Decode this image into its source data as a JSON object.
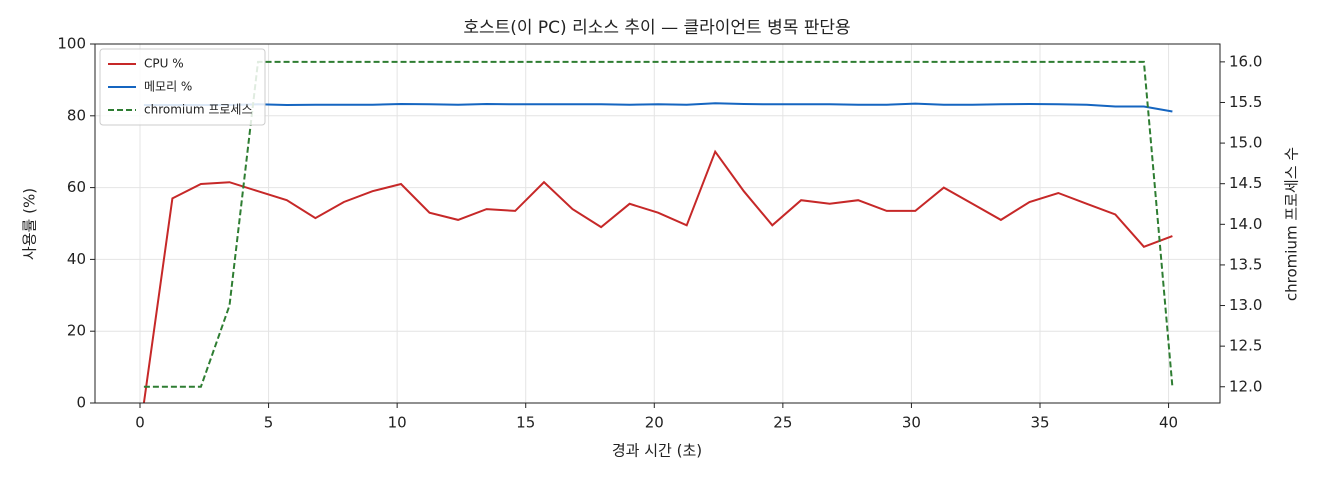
{
  "chart_data": {
    "type": "line",
    "title": "호스트(이 PC) 리소스 추이 — 클라이언트 병목 판단용",
    "xlabel": "경과 시간 (초)",
    "ylabel": "사용률 (%)",
    "y2label": "chromium 프로세스 수",
    "x": [
      0.15,
      1.26,
      2.37,
      3.48,
      4.59,
      5.71,
      6.82,
      7.93,
      9.04,
      10.15,
      11.26,
      12.37,
      13.48,
      14.59,
      15.71,
      16.82,
      17.93,
      19.04,
      20.15,
      21.26,
      22.37,
      23.48,
      24.59,
      25.71,
      26.82,
      27.93,
      29.04,
      30.15,
      31.26,
      32.37,
      33.48,
      34.59,
      35.71,
      36.82,
      37.93,
      39.04,
      40.15
    ],
    "series": [
      {
        "name": "CPU %",
        "color": "#c62828",
        "style": "solid",
        "values": [
          0,
          57,
          61,
          61.5,
          59,
          56.5,
          51.5,
          56,
          59,
          61,
          53,
          51,
          54,
          53.5,
          61.5,
          54,
          49,
          55.5,
          53,
          49.5,
          70,
          59,
          49.5,
          56.5,
          55.5,
          56.5,
          53.5,
          53.5,
          60,
          55.5,
          51,
          56,
          58.5,
          55.5,
          52.5,
          43.5,
          46.5
        ]
      },
      {
        "name": "메모리 %",
        "color": "#1565c0",
        "style": "solid",
        "values": [
          83,
          83,
          83,
          83,
          83.2,
          83,
          83.1,
          83.1,
          83.1,
          83.3,
          83.2,
          83.1,
          83.3,
          83.2,
          83.2,
          83.2,
          83.2,
          83.1,
          83.2,
          83.1,
          83.5,
          83.3,
          83.2,
          83.2,
          83.2,
          83.1,
          83.1,
          83.4,
          83.1,
          83.1,
          83.2,
          83.3,
          83.2,
          83.1,
          82.6,
          82.6,
          81.2
        ]
      },
      {
        "name": "chromium 프로세스",
        "color": "#2e7d32",
        "style": "dashed",
        "axis": "y2",
        "values": [
          12,
          12,
          12,
          13,
          16,
          16,
          16,
          16,
          16,
          16,
          16,
          16,
          16,
          16,
          16,
          16,
          16,
          16,
          16,
          16,
          16,
          16,
          16,
          16,
          16,
          16,
          16,
          16,
          16,
          16,
          16,
          16,
          16,
          16,
          16,
          16,
          12
        ]
      }
    ],
    "xlim": [
      -1.75,
      42.0
    ],
    "xticks": [
      0,
      5,
      10,
      15,
      20,
      25,
      30,
      35,
      40
    ],
    "ylim": [
      0,
      100
    ],
    "yticks": [
      0,
      20,
      40,
      60,
      80,
      100
    ],
    "y2lim": [
      11.8,
      16.22
    ],
    "y2ticks": [
      {
        "value": 12,
        "label": "12.0"
      },
      {
        "value": 12.5,
        "label": "12.5"
      },
      {
        "value": 13,
        "label": "13.0"
      },
      {
        "value": 13.5,
        "label": "13.5"
      },
      {
        "value": 14,
        "label": "14.0"
      },
      {
        "value": 14.5,
        "label": "14.5"
      },
      {
        "value": 15,
        "label": "15.0"
      },
      {
        "value": 15.5,
        "label": "15.5"
      },
      {
        "value": 16,
        "label": "16.0"
      }
    ],
    "grid": true,
    "legend": "upper-left"
  }
}
